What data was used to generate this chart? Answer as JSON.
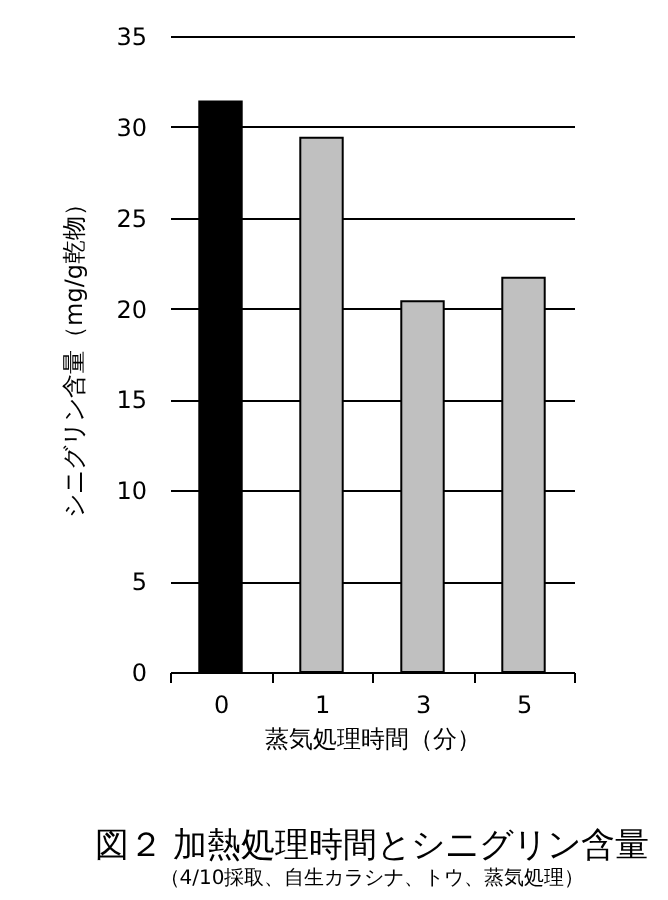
{
  "chart_data": {
    "type": "bar",
    "title": "図２ 加熱処理時間とシニグリン含量",
    "subtitle": "（4/10採取、自生カラシナ、トウ、蒸気処理）",
    "xlabel": "蒸気処理時間（分）",
    "ylabel": "シニグリン含量（mg/g乾物）",
    "categories": [
      "0",
      "1",
      "3",
      "5"
    ],
    "values": [
      31.4,
      29.4,
      20.4,
      21.7
    ],
    "colors": [
      "#000000",
      "#c0c0c0",
      "#c0c0c0",
      "#c0c0c0"
    ],
    "ylim": [
      0,
      35
    ],
    "yticks": [
      0,
      5,
      10,
      15,
      20,
      25,
      30,
      35
    ],
    "grid": "y"
  }
}
